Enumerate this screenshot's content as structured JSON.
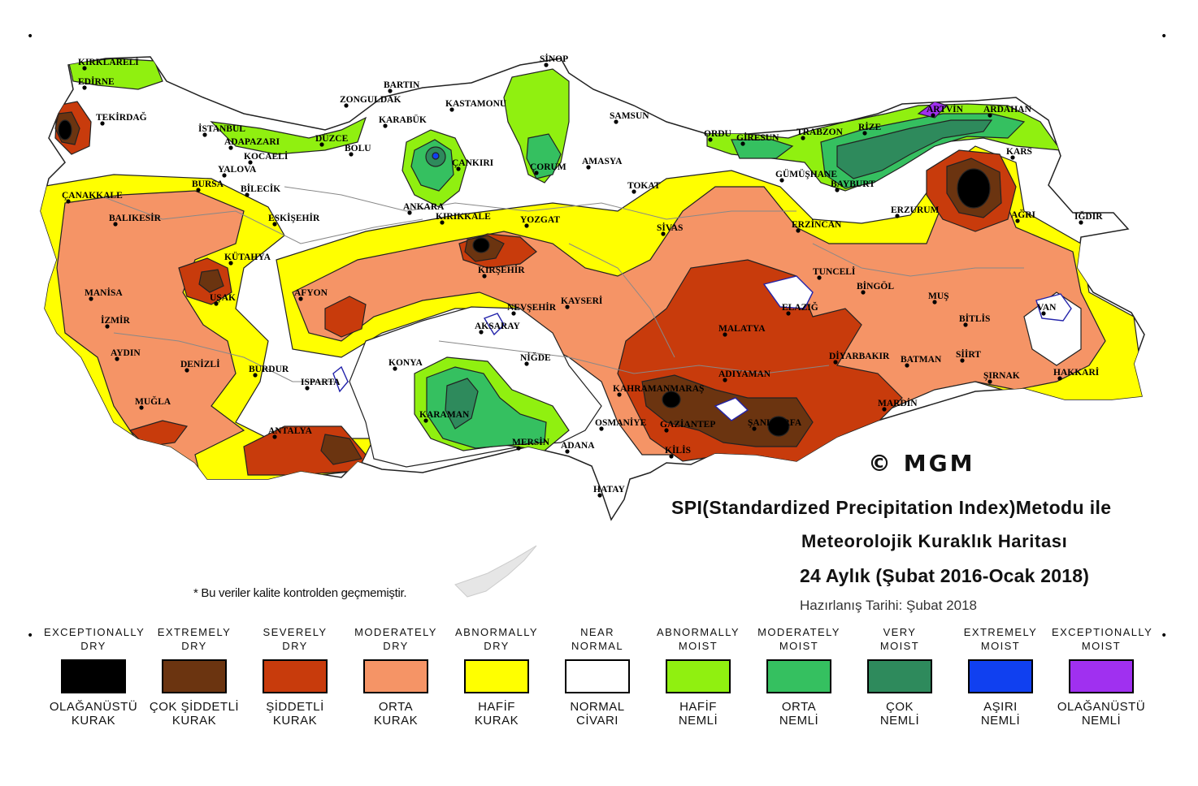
{
  "title": {
    "line1": "SPI(Standardized Precipitation Index)Metodu ile",
    "line2": "Meteorolojik Kuraklık Haritası",
    "line3": "24 Aylık (Şubat 2016-Ocak 2018)",
    "prepared": "Hazırlanış Tarihi: Şubat 2018"
  },
  "note": "* Bu veriler kalite kontrolden geçmemiştir.",
  "copyright": "© MGM",
  "corner_mark": "•",
  "legend": [
    {
      "en": "EXCEPTIONALLY\nDRY",
      "tr": "OLAĞANÜSTÜ\nKURAK",
      "color": "#000000"
    },
    {
      "en": "EXTREMELY\nDRY",
      "tr": "ÇOK ŞİDDETLİ\nKURAK",
      "color": "#6b3410"
    },
    {
      "en": "SEVERELY\nDRY",
      "tr": "ŞİDDETLİ\nKURAK",
      "color": "#c83b0c"
    },
    {
      "en": "MODERATELY\nDRY",
      "tr": "ORTA\nKURAK",
      "color": "#f59466"
    },
    {
      "en": "ABNORMALLY\nDRY",
      "tr": "HAFİF\nKURAK",
      "color": "#ffff00"
    },
    {
      "en": "NEAR\nNORMAL",
      "tr": "NORMAL\nCİVARI",
      "color": "#ffffff"
    },
    {
      "en": "ABNORMALLY\nMOIST",
      "tr": "HAFİF\nNEMLİ",
      "color": "#90f010"
    },
    {
      "en": "MODERATELY\nMOIST",
      "tr": "ORTA\nNEMLİ",
      "color": "#35c060"
    },
    {
      "en": "VERY\nMOIST",
      "tr": "ÇOK\nNEMLİ",
      "color": "#2e8a5c"
    },
    {
      "en": "EXTREMELY\nMOIST",
      "tr": "AŞIRI\nNEMLİ",
      "color": "#1040f0"
    },
    {
      "en": "EXCEPTIONALLY\nMOIST",
      "tr": "OLAĞANÜSTÜ\nNEMLİ",
      "color": "#a030f0"
    }
  ],
  "cities": [
    "KIRKLARELİ",
    "EDİRNE",
    "TEKİRDAĞ",
    "İSTANBUL",
    "SİNOP",
    "BARTIN",
    "ZONGULDAK",
    "KASTAMONU",
    "KARABÜK",
    "SAMSUN",
    "ORDU",
    "GİRESUN",
    "TRABZON",
    "RİZE",
    "ARTVİN",
    "ARDAHAN",
    "KARS",
    "ADAPAZARI",
    "DÜZCE",
    "BOLU",
    "KOCAELİ",
    "YALOVA",
    "ÇANKIRI",
    "ÇORUM",
    "AMASYA",
    "GÜMÜŞHANE",
    "BAYBURT",
    "ÇANAKKALE",
    "BURSA",
    "BİLECİK",
    "TOKAT",
    "ESKİŞEHİR",
    "ANKARA",
    "KIRIKKALE",
    "YOZGAT",
    "SİVAS",
    "ERZİNCAN",
    "ERZURUM",
    "AĞRI",
    "IĞDIR",
    "BALIKESİR",
    "KÜTAHYA",
    "KIRŞEHİR",
    "TUNCELİ",
    "BİNGÖL",
    "MUŞ",
    "MANİSA",
    "UŞAK",
    "AFYON",
    "NEVŞEHİR",
    "KAYSERİ",
    "ELAZIĞ",
    "BİTLİS",
    "VAN",
    "İZMİR",
    "AKSARAY",
    "MALATYA",
    "AYDIN",
    "DENİZLİ",
    "KONYA",
    "NİĞDE",
    "DİYARBAKIR",
    "BATMAN",
    "SİİRT",
    "ŞIRNAK",
    "HAKKARİ",
    "BURDUR",
    "ISPARTA",
    "ADIYAMAN",
    "KAHRAMANMARAŞ",
    "MARDİN",
    "MUĞLA",
    "KARAMAN",
    "OSMANİYE",
    "GAZİANTEP",
    "ŞANLIURFA",
    "ANTALYA",
    "MERSİN",
    "ADANA",
    "KİLİS",
    "HATAY"
  ]
}
